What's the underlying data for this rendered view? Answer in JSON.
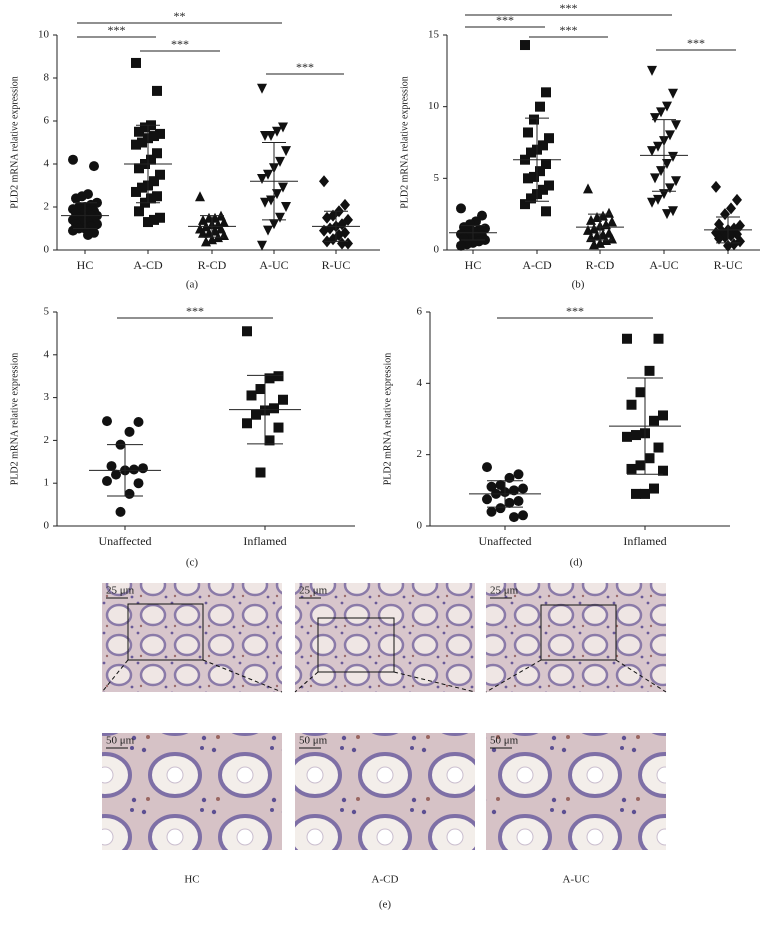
{
  "chart_data": [
    {
      "type": "dotplot",
      "label": "(a)",
      "y_label": "PLD2 mRNA relative expression",
      "categories": [
        "HC",
        "A-CD",
        "R-CD",
        "A-UC",
        "R-UC"
      ],
      "ylim": [
        0,
        10
      ],
      "yticks": [
        0,
        2,
        4,
        6,
        8,
        10
      ],
      "groups": [
        {
          "marker": "circle",
          "mean": 1.6,
          "sd": 0.6,
          "values": [
            4.2,
            3.9,
            2.6,
            2.5,
            2.4,
            2.2,
            2.1,
            2.0,
            2.0,
            1.9,
            1.8,
            1.8,
            1.7,
            1.7,
            1.6,
            1.6,
            1.5,
            1.5,
            1.4,
            1.4,
            1.3,
            1.3,
            1.2,
            1.2,
            1.1,
            1.0,
            1.0,
            0.9,
            0.8,
            0.7
          ]
        },
        {
          "marker": "square",
          "mean": 4.0,
          "sd": 1.8,
          "values": [
            8.7,
            7.4,
            5.8,
            5.7,
            5.5,
            5.4,
            5.3,
            5.2,
            5.0,
            4.9,
            4.5,
            4.2,
            4.0,
            3.8,
            3.5,
            3.2,
            3.0,
            2.9,
            2.7,
            2.5,
            2.4,
            2.2,
            1.8,
            1.5,
            1.4,
            1.3
          ]
        },
        {
          "marker": "triangle",
          "mean": 1.1,
          "sd": 0.5,
          "values": [
            2.5,
            1.6,
            1.5,
            1.5,
            1.4,
            1.3,
            1.2,
            1.2,
            1.1,
            1.0,
            1.0,
            0.9,
            0.8,
            0.8,
            0.7,
            0.6,
            0.5,
            0.4
          ]
        },
        {
          "marker": "triangle-down",
          "mean": 3.2,
          "sd": 1.8,
          "values": [
            7.5,
            5.7,
            5.5,
            5.3,
            5.3,
            4.6,
            4.1,
            3.8,
            3.5,
            3.3,
            2.9,
            2.6,
            2.3,
            2.2,
            2.0,
            1.5,
            1.2,
            0.9,
            0.2
          ]
        },
        {
          "marker": "diamond",
          "mean": 1.1,
          "sd": 0.7,
          "values": [
            3.2,
            2.1,
            1.8,
            1.6,
            1.5,
            1.4,
            1.2,
            1.1,
            1.0,
            0.9,
            0.8,
            0.7,
            0.5,
            0.4,
            0.3,
            0.3
          ]
        }
      ],
      "brackets": [
        {
          "from": 0,
          "to": 3,
          "label": "**"
        },
        {
          "from": 0,
          "to": 1,
          "label": "***"
        },
        {
          "from": 1,
          "to": 2,
          "label": "***"
        },
        {
          "from": 3,
          "to": 4,
          "label": "***"
        }
      ]
    },
    {
      "type": "dotplot",
      "label": "(b)",
      "y_label": "PLD2 mRNA relative expression",
      "categories": [
        "HC",
        "A-CD",
        "R-CD",
        "A-UC",
        "R-UC"
      ],
      "ylim": [
        0,
        15
      ],
      "yticks": [
        0,
        5,
        10,
        15
      ],
      "groups": [
        {
          "marker": "circle",
          "mean": 1.2,
          "sd": 0.5,
          "values": [
            2.9,
            2.4,
            2.0,
            1.8,
            1.6,
            1.5,
            1.4,
            1.3,
            1.2,
            1.1,
            1.0,
            1.0,
            0.9,
            0.8,
            0.7,
            0.6,
            0.5,
            0.4,
            0.3
          ]
        },
        {
          "marker": "square",
          "mean": 6.3,
          "sd": 2.9,
          "values": [
            14.3,
            11.0,
            10.0,
            9.1,
            8.2,
            7.8,
            7.3,
            7.0,
            6.8,
            6.3,
            6.0,
            5.5,
            5.1,
            5.0,
            4.5,
            4.2,
            3.9,
            3.6,
            3.2,
            2.7
          ]
        },
        {
          "marker": "triangle",
          "mean": 1.6,
          "sd": 0.9,
          "values": [
            4.3,
            2.6,
            2.4,
            2.3,
            2.1,
            2.0,
            1.8,
            1.7,
            1.5,
            1.4,
            1.2,
            1.1,
            1.0,
            0.9,
            0.8,
            0.7,
            0.5,
            0.4
          ]
        },
        {
          "marker": "triangle-down",
          "mean": 6.6,
          "sd": 2.5,
          "values": [
            12.5,
            10.9,
            10.0,
            9.6,
            9.2,
            8.7,
            8.0,
            7.6,
            7.2,
            6.9,
            6.5,
            6.0,
            5.5,
            5.0,
            4.8,
            4.3,
            3.9,
            3.5,
            3.3,
            2.7,
            2.5
          ]
        },
        {
          "marker": "diamond",
          "mean": 1.4,
          "sd": 0.9,
          "values": [
            4.4,
            3.5,
            2.9,
            2.5,
            1.8,
            1.7,
            1.5,
            1.4,
            1.3,
            1.2,
            1.1,
            1.0,
            0.9,
            0.8,
            0.6,
            0.4,
            0.3
          ]
        }
      ],
      "brackets": [
        {
          "from": 0,
          "to": 3,
          "label": "***"
        },
        {
          "from": 0,
          "to": 1,
          "label": "***"
        },
        {
          "from": 1,
          "to": 2,
          "label": "***"
        },
        {
          "from": 3,
          "to": 4,
          "label": "***"
        }
      ]
    },
    {
      "type": "dotplot",
      "label": "(c)",
      "y_label": "PLD2 mRNA relative expression",
      "categories": [
        "Unaffected",
        "Inflamed"
      ],
      "ylim": [
        0,
        5
      ],
      "yticks": [
        0,
        1,
        2,
        3,
        4,
        5
      ],
      "groups": [
        {
          "marker": "circle",
          "mean": 1.3,
          "sd": 0.6,
          "values": [
            2.45,
            2.43,
            2.2,
            1.9,
            1.4,
            1.35,
            1.32,
            1.3,
            1.2,
            1.05,
            1.0,
            0.75,
            0.33
          ]
        },
        {
          "marker": "square",
          "mean": 2.72,
          "sd": 0.8,
          "values": [
            4.55,
            3.5,
            3.45,
            3.2,
            3.05,
            2.95,
            2.75,
            2.7,
            2.6,
            2.4,
            2.3,
            2.0,
            1.25
          ]
        }
      ],
      "brackets": [
        {
          "from": 0,
          "to": 1,
          "label": "***"
        }
      ]
    },
    {
      "type": "dotplot",
      "label": "(d)",
      "y_label": "PLD2 mRNA relative expression",
      "categories": [
        "Unaffected",
        "Inflamed"
      ],
      "ylim": [
        0,
        6
      ],
      "yticks": [
        0,
        2,
        4,
        6
      ],
      "groups": [
        {
          "marker": "circle",
          "mean": 0.9,
          "sd": 0.37,
          "values": [
            1.65,
            1.45,
            1.35,
            1.15,
            1.1,
            1.05,
            1.0,
            0.95,
            0.9,
            0.75,
            0.7,
            0.65,
            0.5,
            0.4,
            0.3,
            0.25
          ]
        },
        {
          "marker": "square",
          "mean": 2.8,
          "sd": 1.35,
          "values": [
            5.25,
            5.25,
            4.35,
            3.75,
            3.4,
            3.1,
            2.95,
            2.6,
            2.55,
            2.5,
            2.2,
            1.9,
            1.7,
            1.6,
            1.55,
            1.05,
            0.9,
            0.9
          ]
        }
      ],
      "brackets": [
        {
          "from": 0,
          "to": 1,
          "label": "***"
        }
      ]
    }
  ],
  "panel_e": {
    "label": "(e)",
    "columns": [
      {
        "name": "HC",
        "scale_top": "25 μm",
        "scale_bottom": "50 μm"
      },
      {
        "name": "A-CD",
        "scale_top": "25 μm",
        "scale_bottom": "50 μm"
      },
      {
        "name": "A-UC",
        "scale_top": "25 μm",
        "scale_bottom": "50 μm"
      }
    ]
  }
}
